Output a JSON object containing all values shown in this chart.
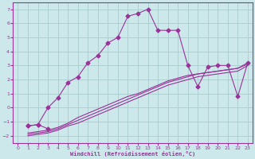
{
  "xlabel": "Windchill (Refroidissement éolien,°C)",
  "background_color": "#cce8ea",
  "grid_color": "#aacccc",
  "line_color": "#993399",
  "xlim": [
    -0.5,
    23.5
  ],
  "ylim": [
    -2.5,
    7.5
  ],
  "xticks": [
    0,
    1,
    2,
    3,
    4,
    5,
    6,
    7,
    8,
    9,
    10,
    11,
    12,
    13,
    14,
    15,
    16,
    17,
    18,
    19,
    20,
    21,
    22,
    23
  ],
  "yticks": [
    -2,
    -1,
    0,
    1,
    2,
    3,
    4,
    5,
    6,
    7
  ],
  "curve1_x": [
    1,
    2,
    3,
    4,
    5,
    6,
    7,
    8,
    9,
    10,
    11,
    12,
    13,
    14,
    15,
    16,
    17,
    18,
    19,
    20,
    21,
    22,
    23
  ],
  "curve1_y": [
    -1.3,
    -1.2,
    0.0,
    0.7,
    1.8,
    2.2,
    3.2,
    3.7,
    4.6,
    5.0,
    6.5,
    6.7,
    7.0,
    5.5,
    5.5,
    5.5,
    3.0,
    1.5,
    2.9,
    3.0,
    3.0,
    0.8,
    3.2
  ],
  "curve2_x": [
    1,
    2,
    3,
    4,
    5,
    6,
    7,
    8,
    9,
    10,
    11,
    12,
    13,
    14,
    15,
    16,
    17,
    18,
    19,
    20,
    21,
    22,
    23
  ],
  "curve2_y": [
    -1.8,
    -1.7,
    -1.6,
    -1.4,
    -1.1,
    -0.7,
    -0.4,
    -0.1,
    0.2,
    0.5,
    0.8,
    1.0,
    1.3,
    1.6,
    1.9,
    2.1,
    2.3,
    2.4,
    2.5,
    2.6,
    2.7,
    2.8,
    3.1
  ],
  "curve3_x": [
    1,
    2,
    3,
    4,
    5,
    6,
    7,
    8,
    9,
    10,
    11,
    12,
    13,
    14,
    15,
    16,
    17,
    18,
    19,
    20,
    21,
    22,
    23
  ],
  "curve3_y": [
    -1.9,
    -1.8,
    -1.7,
    -1.5,
    -1.2,
    -0.9,
    -0.6,
    -0.3,
    0.0,
    0.3,
    0.6,
    0.9,
    1.2,
    1.5,
    1.8,
    2.0,
    2.2,
    2.4,
    2.5,
    2.6,
    2.7,
    2.8,
    3.2
  ],
  "curve4_x": [
    1,
    2,
    3,
    4,
    5,
    6,
    7,
    8,
    9,
    10,
    11,
    12,
    13,
    14,
    15,
    16,
    17,
    18,
    19,
    20,
    21,
    22,
    23
  ],
  "curve4_y": [
    -2.0,
    -1.9,
    -1.8,
    -1.6,
    -1.3,
    -1.1,
    -0.8,
    -0.5,
    -0.2,
    0.1,
    0.4,
    0.7,
    1.0,
    1.3,
    1.6,
    1.8,
    2.0,
    2.2,
    2.3,
    2.4,
    2.5,
    2.6,
    3.0
  ],
  "curve5_x": [
    1,
    2,
    3
  ],
  "curve5_y": [
    -1.3,
    -1.2,
    -1.5
  ]
}
